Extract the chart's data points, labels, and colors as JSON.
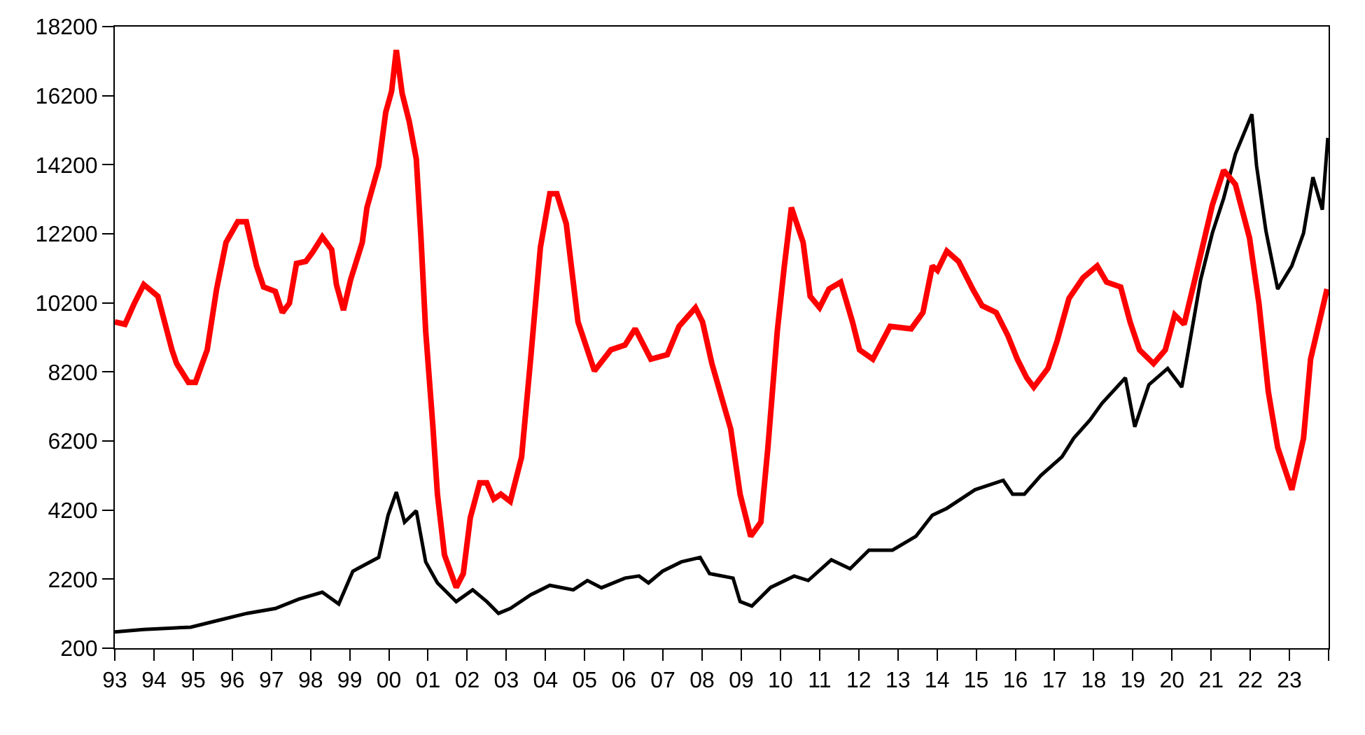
{
  "chart_data": {
    "type": "line",
    "xlim": [
      1993,
      2024
    ],
    "xticks": [
      {
        "value": 1993,
        "label": "93"
      },
      {
        "value": 1994,
        "label": "94"
      },
      {
        "value": 1995,
        "label": "95"
      },
      {
        "value": 1996,
        "label": "96"
      },
      {
        "value": 1997,
        "label": "97"
      },
      {
        "value": 1998,
        "label": "98"
      },
      {
        "value": 1999,
        "label": "99"
      },
      {
        "value": 2000,
        "label": "00"
      },
      {
        "value": 2001,
        "label": "01"
      },
      {
        "value": 2002,
        "label": "02"
      },
      {
        "value": 2003,
        "label": "03"
      },
      {
        "value": 2004,
        "label": "04"
      },
      {
        "value": 2005,
        "label": "05"
      },
      {
        "value": 2006,
        "label": "06"
      },
      {
        "value": 2007,
        "label": "07"
      },
      {
        "value": 2008,
        "label": "08"
      },
      {
        "value": 2009,
        "label": "09"
      },
      {
        "value": 2010,
        "label": "10"
      },
      {
        "value": 2011,
        "label": "11"
      },
      {
        "value": 2012,
        "label": "12"
      },
      {
        "value": 2013,
        "label": "13"
      },
      {
        "value": 2014,
        "label": "14"
      },
      {
        "value": 2015,
        "label": "15"
      },
      {
        "value": 2016,
        "label": "16"
      },
      {
        "value": 2017,
        "label": "17"
      },
      {
        "value": 2018,
        "label": "18"
      },
      {
        "value": 2019,
        "label": "19"
      },
      {
        "value": 2020,
        "label": "20"
      },
      {
        "value": 2021,
        "label": "21"
      },
      {
        "value": 2022,
        "label": "22"
      },
      {
        "value": 2023,
        "label": "23"
      },
      {
        "value": 2024,
        "label": null
      }
    ],
    "ylim": [
      200,
      18200
    ],
    "yticks": [
      200,
      2200,
      4200,
      6200,
      8200,
      10200,
      12200,
      14200,
      16200,
      18200
    ],
    "grid": false,
    "marker": "none",
    "line_style": "solid",
    "series": [
      {
        "color": "#000000",
        "x": [
          1993.0,
          1993.74,
          1994.94,
          1995.66,
          1996.38,
          1997.1,
          1997.7,
          1998.3,
          1998.72,
          1999.08,
          1999.74,
          1999.98,
          2000.19,
          2000.4,
          2000.7,
          2000.94,
          2001.24,
          2001.72,
          2002.14,
          2002.5,
          2002.8,
          2003.1,
          2003.63,
          2004.11,
          2004.71,
          2005.07,
          2005.43,
          2006.03,
          2006.39,
          2006.63,
          2006.99,
          2007.47,
          2007.95,
          2008.19,
          2008.79,
          2008.97,
          2009.27,
          2009.75,
          2010.35,
          2010.71,
          2011.3,
          2011.78,
          2012.26,
          2012.86,
          2013.46,
          2013.88,
          2014.25,
          2014.97,
          2015.69,
          2015.93,
          2016.23,
          2016.65,
          2017.19,
          2017.49,
          2017.91,
          2018.21,
          2018.81,
          2019.05,
          2019.41,
          2019.89,
          2020.25,
          2020.43,
          2020.73,
          2021.03,
          2021.32,
          2021.62,
          2022.04,
          2022.16,
          2022.4,
          2022.7,
          2023.06,
          2023.36,
          2023.6,
          2023.84,
          2023.98
        ],
        "values": [
          670,
          740,
          810,
          1010,
          1210,
          1350,
          1620,
          1820,
          1480,
          2430,
          2830,
          4050,
          4720,
          3850,
          4180,
          2700,
          2090,
          1550,
          1890,
          1550,
          1210,
          1350,
          1750,
          2020,
          1890,
          2160,
          1950,
          2230,
          2290,
          2090,
          2430,
          2700,
          2830,
          2360,
          2230,
          1550,
          1420,
          1960,
          2290,
          2160,
          2760,
          2500,
          3040,
          3040,
          3440,
          4050,
          4250,
          4790,
          5060,
          4660,
          4660,
          5200,
          5740,
          6280,
          6815,
          7290,
          8030,
          6610,
          7830,
          8300,
          7760,
          8900,
          10860,
          12220,
          13230,
          14510,
          15660,
          14170,
          12280,
          10600,
          11270,
          12220,
          13840,
          12900,
          14980
        ]
      },
      {
        "color": "#ff0000",
        "x": [
          1993.0,
          1993.26,
          1993.5,
          1993.74,
          1994.1,
          1994.46,
          1994.58,
          1994.88,
          1995.06,
          1995.36,
          1995.6,
          1995.84,
          1996.14,
          1996.36,
          1996.62,
          1996.8,
          1997.1,
          1997.28,
          1997.46,
          1997.64,
          1997.88,
          1998.06,
          1998.3,
          1998.54,
          1998.66,
          1998.84,
          1999.02,
          1999.32,
          1999.44,
          1999.74,
          1999.92,
          2000.07,
          2000.19,
          2000.34,
          2000.52,
          2000.7,
          2000.82,
          2000.94,
          2001.12,
          2001.24,
          2001.42,
          2001.72,
          2001.9,
          2002.08,
          2002.32,
          2002.5,
          2002.68,
          2002.86,
          2003.1,
          2003.39,
          2003.63,
          2003.87,
          2004.11,
          2004.29,
          2004.53,
          2004.83,
          2005.25,
          2005.67,
          2006.03,
          2006.29,
          2006.69,
          2007.11,
          2007.41,
          2007.83,
          2008.01,
          2008.25,
          2008.49,
          2008.73,
          2008.97,
          2009.24,
          2009.5,
          2009.68,
          2009.92,
          2010.1,
          2010.28,
          2010.58,
          2010.76,
          2011.0,
          2011.24,
          2011.54,
          2011.84,
          2012.02,
          2012.36,
          2012.8,
          2013.34,
          2013.64,
          2013.88,
          2014.01,
          2014.25,
          2014.55,
          2014.91,
          2015.15,
          2015.51,
          2015.81,
          2016.05,
          2016.29,
          2016.47,
          2016.83,
          2017.07,
          2017.37,
          2017.73,
          2018.09,
          2018.33,
          2018.69,
          2018.93,
          2019.17,
          2019.53,
          2019.83,
          2020.07,
          2020.31,
          2020.61,
          2021.03,
          2021.32,
          2021.62,
          2021.98,
          2022.22,
          2022.46,
          2022.7,
          2023.06,
          2023.36,
          2023.54,
          2023.96
        ],
        "values": [
          9650,
          9580,
          10190,
          10730,
          10390,
          8840,
          8440,
          7900,
          7900,
          8840,
          10600,
          11950,
          12550,
          12550,
          11270,
          10660,
          10530,
          9920,
          10190,
          11340,
          11400,
          11680,
          12110,
          11740,
          10730,
          9990,
          10860,
          11950,
          12960,
          14170,
          15720,
          16330,
          17520,
          16260,
          15450,
          14370,
          12080,
          9380,
          6680,
          4660,
          2900,
          1960,
          2360,
          3980,
          4990,
          4990,
          4520,
          4660,
          4450,
          5740,
          8700,
          11810,
          13360,
          13360,
          12490,
          9650,
          8230,
          8840,
          8980,
          9450,
          8570,
          8700,
          9520,
          10060,
          9650,
          8440,
          7490,
          6550,
          4660,
          3440,
          3850,
          6010,
          9380,
          11270,
          12960,
          11950,
          10390,
          10060,
          10600,
          10800,
          9650,
          8840,
          8570,
          9520,
          9450,
          9920,
          11270,
          11140,
          11700,
          11400,
          10600,
          10120,
          9920,
          9250,
          8570,
          8030,
          7760,
          8300,
          9110,
          10330,
          10930,
          11270,
          10800,
          10660,
          9650,
          8840,
          8440,
          8840,
          9850,
          9580,
          11000,
          13030,
          14040,
          13630,
          12080,
          10190,
          7630,
          6010,
          4790,
          6280,
          8570,
          10600
        ]
      }
    ]
  }
}
